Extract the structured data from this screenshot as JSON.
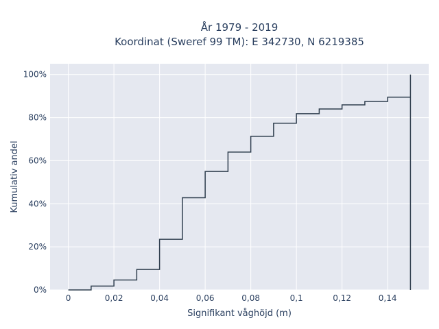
{
  "chart_data": {
    "type": "line",
    "line_shape": "step",
    "title_line1": "År 1979 - 2019",
    "title_line2": "Koordinat (Sweref 99 TM): E 342730, N 6219385",
    "xlabel": "Signifikant våghöjd (m)",
    "ylabel": "Kumulativ andel",
    "xlim": [
      -0.008,
      0.158
    ],
    "ylim": [
      0,
      1.05
    ],
    "x_ticks": [
      0,
      0.02,
      0.04,
      0.06,
      0.08,
      0.1,
      0.12,
      0.14
    ],
    "x_tick_labels": [
      "0",
      "0,02",
      "0,04",
      "0,06",
      "0,08",
      "0,1",
      "0,12",
      "0,14"
    ],
    "y_ticks": [
      0,
      0.2,
      0.4,
      0.6,
      0.8,
      1.0
    ],
    "y_tick_labels": [
      "0%",
      "20%",
      "40%",
      "60%",
      "80%",
      "100%"
    ],
    "grid": true,
    "colors": {
      "line": "#2f3e4e",
      "plot_bg": "#e5e8f0",
      "grid": "#ffffff",
      "text": "#2a3f5f"
    },
    "series": [
      {
        "x": [
          0,
          0.01,
          0.02,
          0.03,
          0.04,
          0.05,
          0.06,
          0.07,
          0.08,
          0.09,
          0.1,
          0.11,
          0.12,
          0.13,
          0.14,
          0.15
        ],
        "y": [
          0.0,
          0.018,
          0.046,
          0.095,
          0.235,
          0.428,
          0.55,
          0.64,
          0.713,
          0.774,
          0.818,
          0.84,
          0.859,
          0.875,
          0.895,
          1.0
        ]
      }
    ]
  }
}
